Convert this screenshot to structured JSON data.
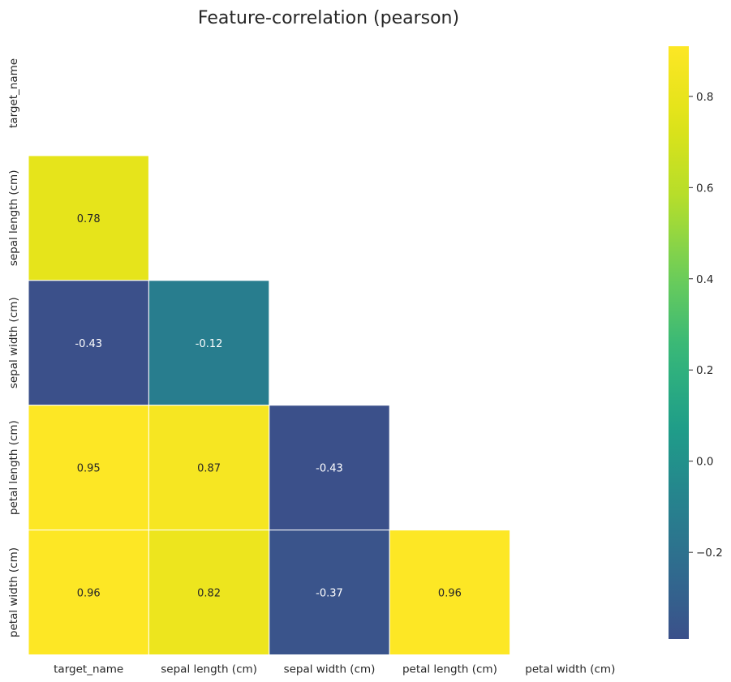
{
  "chart_data": {
    "type": "heatmap",
    "title": "Feature-correlation (pearson)",
    "xlabel": "",
    "ylabel": "",
    "x_labels": [
      "target_name",
      "sepal length (cm)",
      "sepal width (cm)",
      "petal length (cm)",
      "petal width (cm)"
    ],
    "y_labels": [
      "target_name",
      "sepal length (cm)",
      "sepal width (cm)",
      "petal length (cm)",
      "petal width (cm)"
    ],
    "mask": "upper-triangle-and-diagonal",
    "cells": [
      {
        "row": "sepal length (cm)",
        "col": "target_name",
        "value": 0.78,
        "label": "0.78"
      },
      {
        "row": "sepal width (cm)",
        "col": "target_name",
        "value": -0.43,
        "label": "-0.43"
      },
      {
        "row": "sepal width (cm)",
        "col": "sepal length (cm)",
        "value": -0.12,
        "label": "-0.12"
      },
      {
        "row": "petal length (cm)",
        "col": "target_name",
        "value": 0.95,
        "label": "0.95"
      },
      {
        "row": "petal length (cm)",
        "col": "sepal length (cm)",
        "value": 0.87,
        "label": "0.87"
      },
      {
        "row": "petal length (cm)",
        "col": "sepal width (cm)",
        "value": -0.43,
        "label": "-0.43"
      },
      {
        "row": "petal width (cm)",
        "col": "target_name",
        "value": 0.96,
        "label": "0.96"
      },
      {
        "row": "petal width (cm)",
        "col": "sepal length (cm)",
        "value": 0.82,
        "label": "0.82"
      },
      {
        "row": "petal width (cm)",
        "col": "sepal width (cm)",
        "value": -0.37,
        "label": "-0.37"
      },
      {
        "row": "petal width (cm)",
        "col": "petal length (cm)",
        "value": 0.96,
        "label": "0.96"
      }
    ],
    "colormap": "viridis",
    "colorbar": {
      "vmin": -0.39,
      "vmax": 0.91,
      "ticks": [
        -0.2,
        0.0,
        0.2,
        0.4,
        0.6,
        0.8
      ],
      "tick_labels": [
        "−0.2",
        "0.0",
        "0.2",
        "0.4",
        "0.6",
        "0.8"
      ]
    },
    "grid": false,
    "legend": "colorbar-right"
  }
}
